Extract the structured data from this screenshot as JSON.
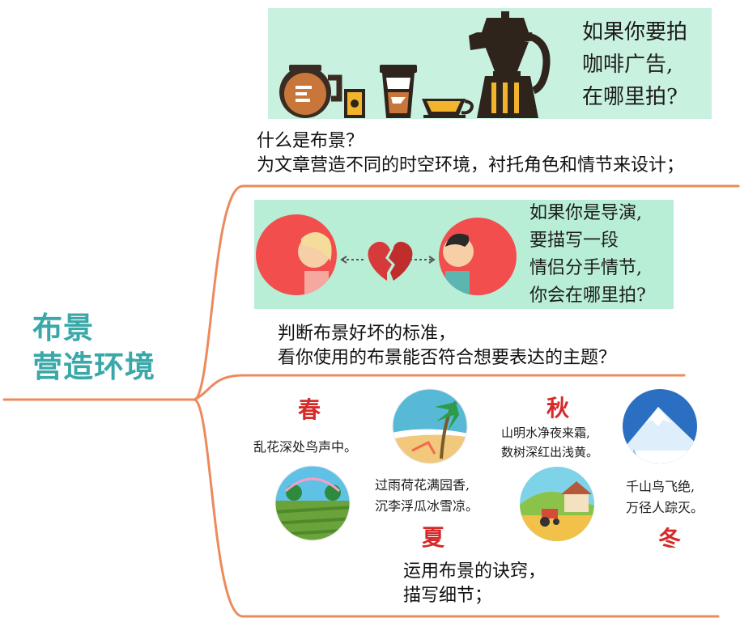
{
  "root": {
    "line1": "布景",
    "line2": "营造环境"
  },
  "colors": {
    "branch": "#ec8a5d",
    "root_text": "#3aa8a8",
    "panel_mint": "#c9f1df",
    "panel_green": "#b9eed6",
    "season_red": "#d62a2a"
  },
  "branches": [
    {
      "line1": "什么是布景？",
      "line2": "为文章营造不同的时空环境，衬托角色和情节来设计；",
      "panel": {
        "icons": [
          "coffee-pot-icon",
          "coffee-bag-icon",
          "coffee-cup-icon",
          "teacup-icon",
          "moka-pot-icon"
        ],
        "text": [
          "如果你要拍",
          "咖啡广告,",
          "在哪里拍?"
        ]
      }
    },
    {
      "line1": "判断布景好坏的标准，",
      "line2": "看你使用的布景能否符合想要表达的主题？",
      "panel": {
        "icons": [
          "woman-avatar-icon",
          "broken-heart-icon",
          "man-avatar-icon"
        ],
        "text": [
          "如果你是导演,",
          "要描写一段",
          "情侣分手情节,",
          "你会在哪里拍?"
        ]
      }
    },
    {
      "line1": "运用布景的诀窍，",
      "line2": "描写细节；",
      "panel": {
        "seasons": [
          {
            "name": "春",
            "poem": "乱花深处鸟声中。",
            "icon": "beach-scene-icon"
          },
          {
            "name": "秋",
            "poem": [
              "山明水净夜来霜,",
              "数树深红出浅黄。"
            ],
            "icon": "snowy-mountain-icon"
          },
          {
            "name": "夏",
            "poem": [
              "过雨荷花满园香,",
              "沉李浮瓜冰雪凉。"
            ],
            "icon": "farm-field-icon"
          },
          {
            "name": "冬",
            "poem": [
              "千山鸟飞绝,",
              "万径人踪灭。"
            ],
            "icon": "farmhouse-tractor-icon"
          }
        ]
      }
    }
  ]
}
